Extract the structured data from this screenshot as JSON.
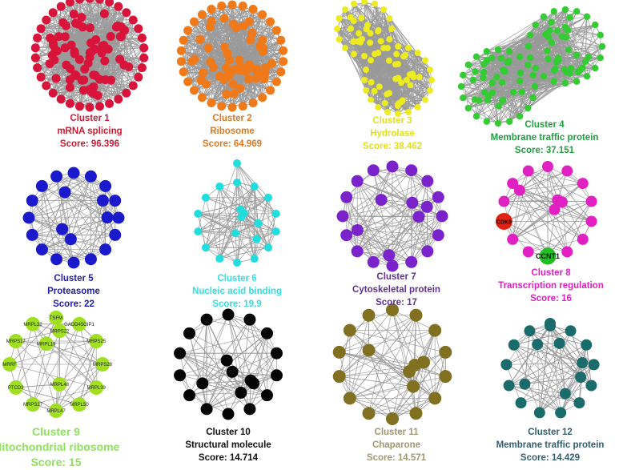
{
  "clusters": [
    {
      "title": "Cluster 1",
      "function": "mRNA splicing",
      "score": "Score: 96.396",
      "color": "#d8143a",
      "text_color": "#d01a30"
    },
    {
      "title": "Cluster 2",
      "function": "Ribosome",
      "score": "Score: 64.969",
      "color": "#f07a1a",
      "text_color": "#e07820"
    },
    {
      "title": "Cluster 3",
      "function": "Hydrolase",
      "score": "Score: 38.462",
      "color": "#ecec20",
      "text_color": "#e0e020"
    },
    {
      "title": "Cluster 4",
      "function": "Membrane traffic protein",
      "score": "Score: 37.151",
      "color": "#33cc33",
      "text_color": "#20a040"
    },
    {
      "title": "Cluster 5",
      "function": "Proteasome",
      "score": "Score: 22",
      "color": "#1a1acc",
      "text_color": "#2020b0"
    },
    {
      "title": "Cluster 6",
      "function": "Nucleic acid binding",
      "score": "Score: 19.9",
      "color": "#22dddd",
      "text_color": "#30e0e0"
    },
    {
      "title": "Cluster 7",
      "function": "Cytoskeletal protein",
      "score": "Score: 17",
      "color": "#7a22cc",
      "text_color": "#603090"
    },
    {
      "title": "Cluster 8",
      "function": "Transcription regulation",
      "score": "Score: 16",
      "color": "#e020c0",
      "text_color": "#e020c0",
      "highlight_nodes": [
        {
          "label": "CDK9",
          "color": "#e02010"
        },
        {
          "label": "CCNT1",
          "color": "#20c020"
        }
      ]
    },
    {
      "title": "Cluster 9",
      "function": "Mitochondrial ribosome",
      "score": "Score: 15",
      "color": "#a0e020",
      "text_color": "#90e060",
      "node_labels": [
        "TSFM",
        "GADD45GIP1",
        "MRPS25",
        "MRPS28",
        "MRPL39",
        "MRPL50",
        "MRPL47",
        "MRPS27",
        "PTCD3",
        "MRRF",
        "MRPS17",
        "MRPL32",
        "MRPL48",
        "MRPL19",
        "MRPS22"
      ]
    },
    {
      "title": "Cluster 10",
      "function": "Structural molecule",
      "score": "Score: 14.714",
      "color": "#050505",
      "text_color": "#101010"
    },
    {
      "title": "Cluster 11",
      "function": "Chaparone",
      "score": "Score: 14.571",
      "color": "#807020",
      "text_color": "#a09870"
    },
    {
      "title": "Cluster 12",
      "function": "Membrane traffic protein",
      "score": "Score: 14.429",
      "color": "#1a6b6b",
      "text_color": "#306070"
    }
  ],
  "edge_color": "#9a9a9a"
}
